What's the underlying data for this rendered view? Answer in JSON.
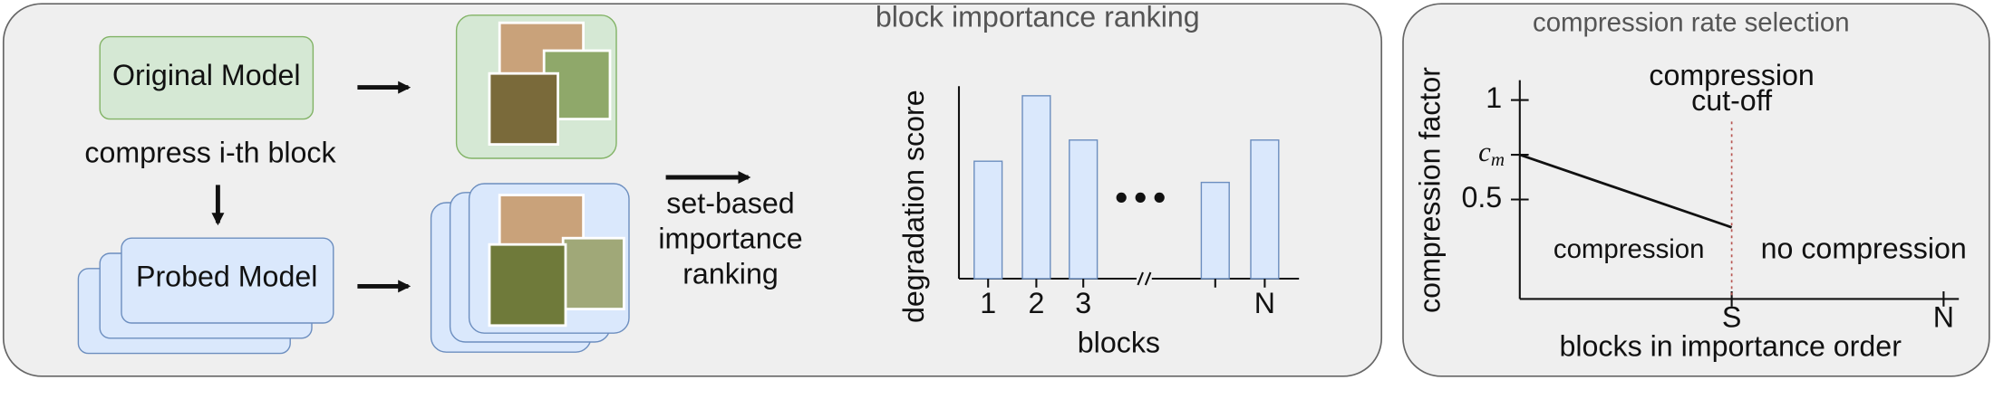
{
  "pipeline": {
    "original_model": "Original Model",
    "compress_step": "compress i-th block",
    "probed_model": "Probed Model",
    "ranking_step": [
      "set-based",
      "importance",
      "ranking"
    ]
  },
  "ranking_chart": {
    "type": "bar",
    "title": "block importance ranking",
    "y_label": "degradation score",
    "x_label": "blocks",
    "categories": [
      "1",
      "2",
      "3",
      null,
      "N"
    ],
    "values": [
      0.61,
      0.95,
      0.72,
      0.5,
      0.72
    ],
    "ylim": [
      0,
      1
    ],
    "color": "#dae8fc"
  },
  "selection_chart": {
    "type": "line",
    "title": "compression rate selection",
    "y_label": "compression factor",
    "x_label": "blocks in importance order",
    "x": [
      0,
      0.5
    ],
    "values": [
      0.725,
      0.36
    ],
    "xlim": [
      0,
      1
    ],
    "ylim": [
      0,
      1.1
    ],
    "yticks": [
      1,
      0.5,
      {
        "value": 0.725,
        "label": "c",
        "subscript": "m"
      }
    ],
    "xticks": [
      {
        "value": 0.5,
        "label": "S"
      },
      {
        "value": 1,
        "label": "N"
      }
    ],
    "cutoff": {
      "x": 0.5,
      "label": [
        "compression",
        "cut-off"
      ]
    },
    "region_labels": [
      "compression",
      "no compression"
    ]
  }
}
